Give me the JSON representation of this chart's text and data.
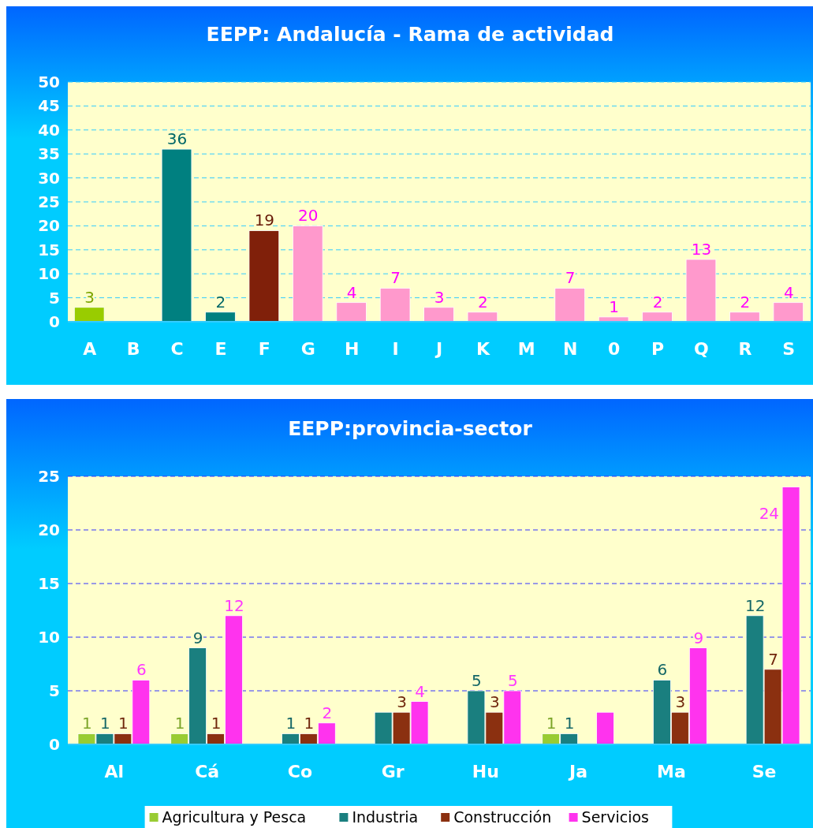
{
  "chart_data": [
    {
      "type": "bar",
      "title": "EEPP: Andalucía - Rama de actividad",
      "categories": [
        "A",
        "B",
        "C",
        "E",
        "F",
        "G",
        "H",
        "I",
        "J",
        "K",
        "M",
        "N",
        "0",
        "P",
        "Q",
        "R",
        "S"
      ],
      "values": [
        3,
        null,
        36,
        2,
        19,
        20,
        4,
        7,
        3,
        2,
        null,
        7,
        1,
        2,
        13,
        2,
        4
      ],
      "colors": [
        "#99cc00",
        null,
        "#008080",
        "#008080",
        "#80200a",
        "#ff99cc",
        "#ff99cc",
        "#ff99cc",
        "#ff99cc",
        "#ff99cc",
        null,
        "#ff99cc",
        "#ff99cc",
        "#ff99cc",
        "#ff99cc",
        "#ff99cc",
        "#ff99cc"
      ],
      "ylim": [
        0,
        50
      ],
      "yticks": [
        0,
        5,
        10,
        15,
        20,
        25,
        30,
        35,
        40,
        45,
        50
      ],
      "grid": "y",
      "data_labels": true,
      "legend": false
    },
    {
      "type": "bar",
      "title": "EEPP:provincia-sector",
      "categories": [
        "Al",
        "Cá",
        "Co",
        "Gr",
        "Hu",
        "Ja",
        "Ma",
        "Se"
      ],
      "series": [
        {
          "name": "Agricultura y Pesca",
          "color": "#99cc33",
          "values": [
            1,
            1,
            null,
            null,
            null,
            1,
            null,
            null
          ],
          "value_labels": [
            "1",
            "1",
            null,
            null,
            null,
            "1",
            null,
            null
          ]
        },
        {
          "name": "Industria",
          "color": "#1a7f7f",
          "values": [
            1,
            9,
            1,
            3,
            5,
            1,
            6,
            12
          ],
          "value_labels": [
            "1",
            "9",
            "1",
            null,
            "5",
            "1",
            "6",
            "12"
          ]
        },
        {
          "name": "Construcción",
          "color": "#8b3010",
          "values": [
            1,
            1,
            1,
            3,
            3,
            null,
            3,
            7
          ],
          "value_labels": [
            "1",
            "1",
            "1",
            "3",
            "3",
            null,
            "3",
            "7"
          ]
        },
        {
          "name": "Servicios",
          "color": "#ff33ee",
          "values": [
            6,
            12,
            2,
            4,
            5,
            3,
            9,
            24
          ],
          "value_labels": [
            "6",
            "12",
            "2",
            "4",
            "5",
            null,
            "9",
            "24"
          ]
        }
      ],
      "ylim": [
        0,
        25
      ],
      "yticks": [
        0,
        5,
        10,
        15,
        20,
        25
      ],
      "grid": "y",
      "legend": "bottom"
    }
  ]
}
